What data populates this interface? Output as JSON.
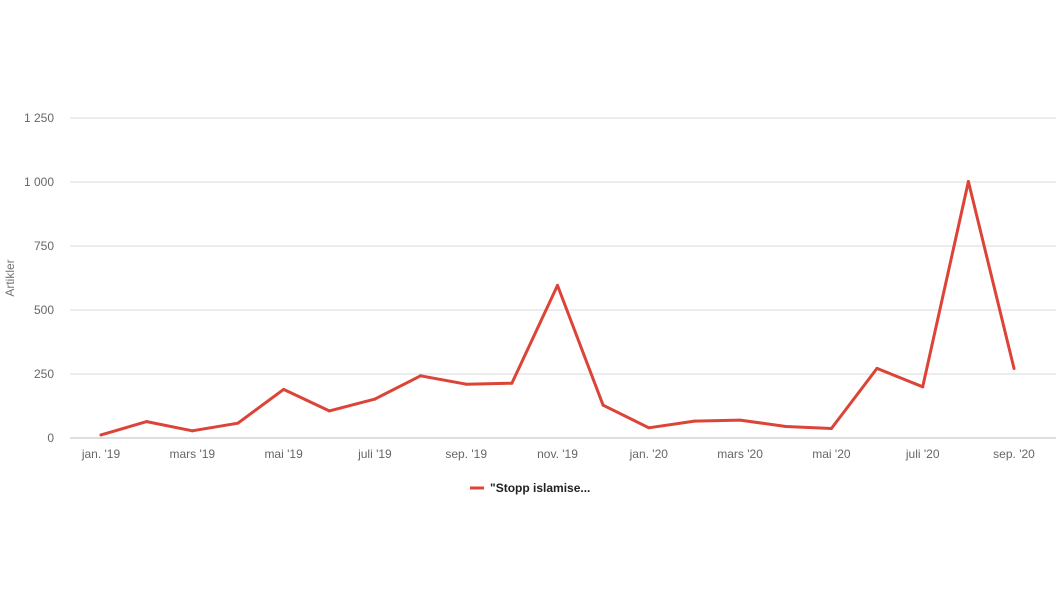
{
  "chart_data": {
    "type": "line",
    "ylabel": "Artikler",
    "xlabel": "",
    "title": "",
    "ylim": [
      0,
      1250
    ],
    "yticks": [
      0,
      250,
      500,
      750,
      1000,
      1250
    ],
    "ytick_labels": [
      "0",
      "250",
      "500",
      "750",
      "1 000",
      "1 250"
    ],
    "x": [
      "jan. '19",
      "feb. '19",
      "mars '19",
      "apr. '19",
      "mai '19",
      "juni '19",
      "juli '19",
      "aug. '19",
      "sep. '19",
      "okt. '19",
      "nov. '19",
      "des. '19",
      "jan. '20",
      "feb. '20",
      "mars '20",
      "apr. '20",
      "mai '20",
      "juni '20",
      "juli '20",
      "aug. '20",
      "sep. '20"
    ],
    "xtick_labels": [
      {
        "index": 0,
        "label": "jan. '19"
      },
      {
        "index": 2,
        "label": "mars '19"
      },
      {
        "index": 4,
        "label": "mai '19"
      },
      {
        "index": 6,
        "label": "juli '19"
      },
      {
        "index": 8,
        "label": "sep. '19"
      },
      {
        "index": 10,
        "label": "nov. '19"
      },
      {
        "index": 12,
        "label": "jan. '20"
      },
      {
        "index": 14,
        "label": "mars '20"
      },
      {
        "index": 16,
        "label": "mai '20"
      },
      {
        "index": 18,
        "label": "juli '20"
      },
      {
        "index": 20,
        "label": "sep. '20"
      }
    ],
    "series": [
      {
        "name": "\"Stopp islamise...",
        "color": "#db4437",
        "values": [
          12,
          64,
          28,
          58,
          190,
          106,
          152,
          243,
          210,
          214,
          596,
          128,
          40,
          66,
          70,
          45,
          37,
          272,
          200,
          1002,
          272
        ]
      }
    ],
    "grid": true,
    "legend_position": "bottom"
  }
}
